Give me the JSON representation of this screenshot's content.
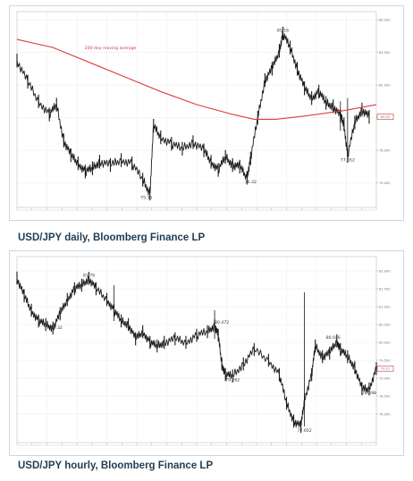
{
  "captions": {
    "daily": "USD/JPY daily, Bloomberg Finance LP",
    "hourly": "USD/JPY hourly, Bloomberg Finance LP"
  },
  "colors": {
    "price": "#1a1a1a",
    "moving_average": "#e03c3c",
    "grid": "#e6eaee",
    "caption": "#1f3d55"
  },
  "chart_data": [
    {
      "type": "line",
      "name": "daily",
      "annotations": [
        {
          "label": "200-day moving average",
          "x": 0.26,
          "y": 84.2
        },
        {
          "label": "85.16",
          "x": 0.74,
          "y": 85.16
        },
        {
          "label": "75.35",
          "x": 0.36,
          "y": 75.35
        },
        {
          "label": "76.32",
          "x": 0.65,
          "y": 76.32
        },
        {
          "label": "77.652",
          "x": 0.92,
          "y": 77.652
        }
      ],
      "last_value_label": "80.05",
      "ylim": [
        74.5,
        86.5
      ],
      "yticks": [
        "86.000",
        "84.000",
        "82.000",
        "80.000",
        "78.000",
        "76.000"
      ],
      "x": [
        0.0,
        0.03,
        0.06,
        0.09,
        0.11,
        0.13,
        0.15,
        0.17,
        0.19,
        0.21,
        0.23,
        0.26,
        0.29,
        0.32,
        0.35,
        0.37,
        0.38,
        0.4,
        0.43,
        0.46,
        0.49,
        0.52,
        0.54,
        0.56,
        0.58,
        0.6,
        0.62,
        0.64,
        0.65,
        0.67,
        0.69,
        0.71,
        0.73,
        0.74,
        0.76,
        0.78,
        0.8,
        0.82,
        0.84,
        0.86,
        0.88,
        0.9,
        0.91,
        0.92,
        0.94,
        0.96,
        0.98
      ],
      "values": [
        83.5,
        82.2,
        81.0,
        80.2,
        80.8,
        78.6,
        77.7,
        77.2,
        76.7,
        76.9,
        77.3,
        77.1,
        77.4,
        77.2,
        76.2,
        75.35,
        79.5,
        78.8,
        78.4,
        78.1,
        78.5,
        78.0,
        77.3,
        76.8,
        77.6,
        77.1,
        77.0,
        76.32,
        77.5,
        80.0,
        82.3,
        83.0,
        84.1,
        85.16,
        84.3,
        83.0,
        81.8,
        81.2,
        81.6,
        80.9,
        80.7,
        80.1,
        79.6,
        77.652,
        79.7,
        80.5,
        80.05
      ],
      "series": [
        {
          "name": "200-day moving average",
          "x": [
            0.0,
            0.1,
            0.2,
            0.3,
            0.4,
            0.5,
            0.6,
            0.66,
            0.72,
            0.8,
            0.9,
            1.0
          ],
          "values": [
            84.8,
            84.3,
            83.4,
            82.5,
            81.6,
            80.8,
            80.2,
            79.9,
            79.9,
            80.1,
            80.4,
            80.8
          ]
        }
      ]
    },
    {
      "type": "line",
      "name": "hourly",
      "annotations": [
        {
          "label": "81.79",
          "x": 0.2,
          "y": 81.79
        },
        {
          "label": "80.32",
          "x": 0.11,
          "y": 80.32
        },
        {
          "label": "80.472",
          "x": 0.57,
          "y": 80.472
        },
        {
          "label": "79.062",
          "x": 0.6,
          "y": 79.062
        },
        {
          "label": "80.046",
          "x": 0.88,
          "y": 80.046
        },
        {
          "label": "77.652",
          "x": 0.8,
          "y": 77.652
        },
        {
          "label": "78.698",
          "x": 0.98,
          "y": 78.698
        }
      ],
      "last_value_label": "79.27",
      "ylim": [
        77.2,
        82.4
      ],
      "yticks": [
        "82.000",
        "81.500",
        "81.000",
        "80.500",
        "80.000",
        "79.500",
        "79.000",
        "78.500",
        "78.000"
      ],
      "x": [
        0.0,
        0.02,
        0.04,
        0.06,
        0.08,
        0.1,
        0.12,
        0.14,
        0.16,
        0.18,
        0.2,
        0.22,
        0.25,
        0.27,
        0.29,
        0.31,
        0.33,
        0.35,
        0.37,
        0.39,
        0.41,
        0.44,
        0.47,
        0.5,
        0.53,
        0.55,
        0.56,
        0.57,
        0.58,
        0.6,
        0.63,
        0.66,
        0.7,
        0.73,
        0.75,
        0.77,
        0.79,
        0.8,
        0.82,
        0.83,
        0.85,
        0.87,
        0.89,
        0.9,
        0.92,
        0.94,
        0.96,
        0.98,
        1.0
      ],
      "values": [
        81.8,
        81.3,
        80.9,
        80.6,
        80.5,
        80.4,
        80.8,
        81.2,
        81.5,
        81.6,
        81.79,
        81.5,
        81.2,
        80.9,
        80.6,
        80.5,
        80.1,
        80.3,
        80.0,
        79.9,
        80.0,
        80.1,
        80.0,
        80.2,
        80.3,
        80.472,
        80.2,
        79.4,
        79.1,
        79.062,
        79.4,
        79.8,
        79.5,
        79.1,
        78.3,
        77.8,
        77.652,
        78.4,
        79.1,
        79.9,
        79.6,
        79.7,
        80.046,
        79.8,
        79.6,
        79.3,
        78.7,
        78.698,
        79.27
      ]
    }
  ]
}
